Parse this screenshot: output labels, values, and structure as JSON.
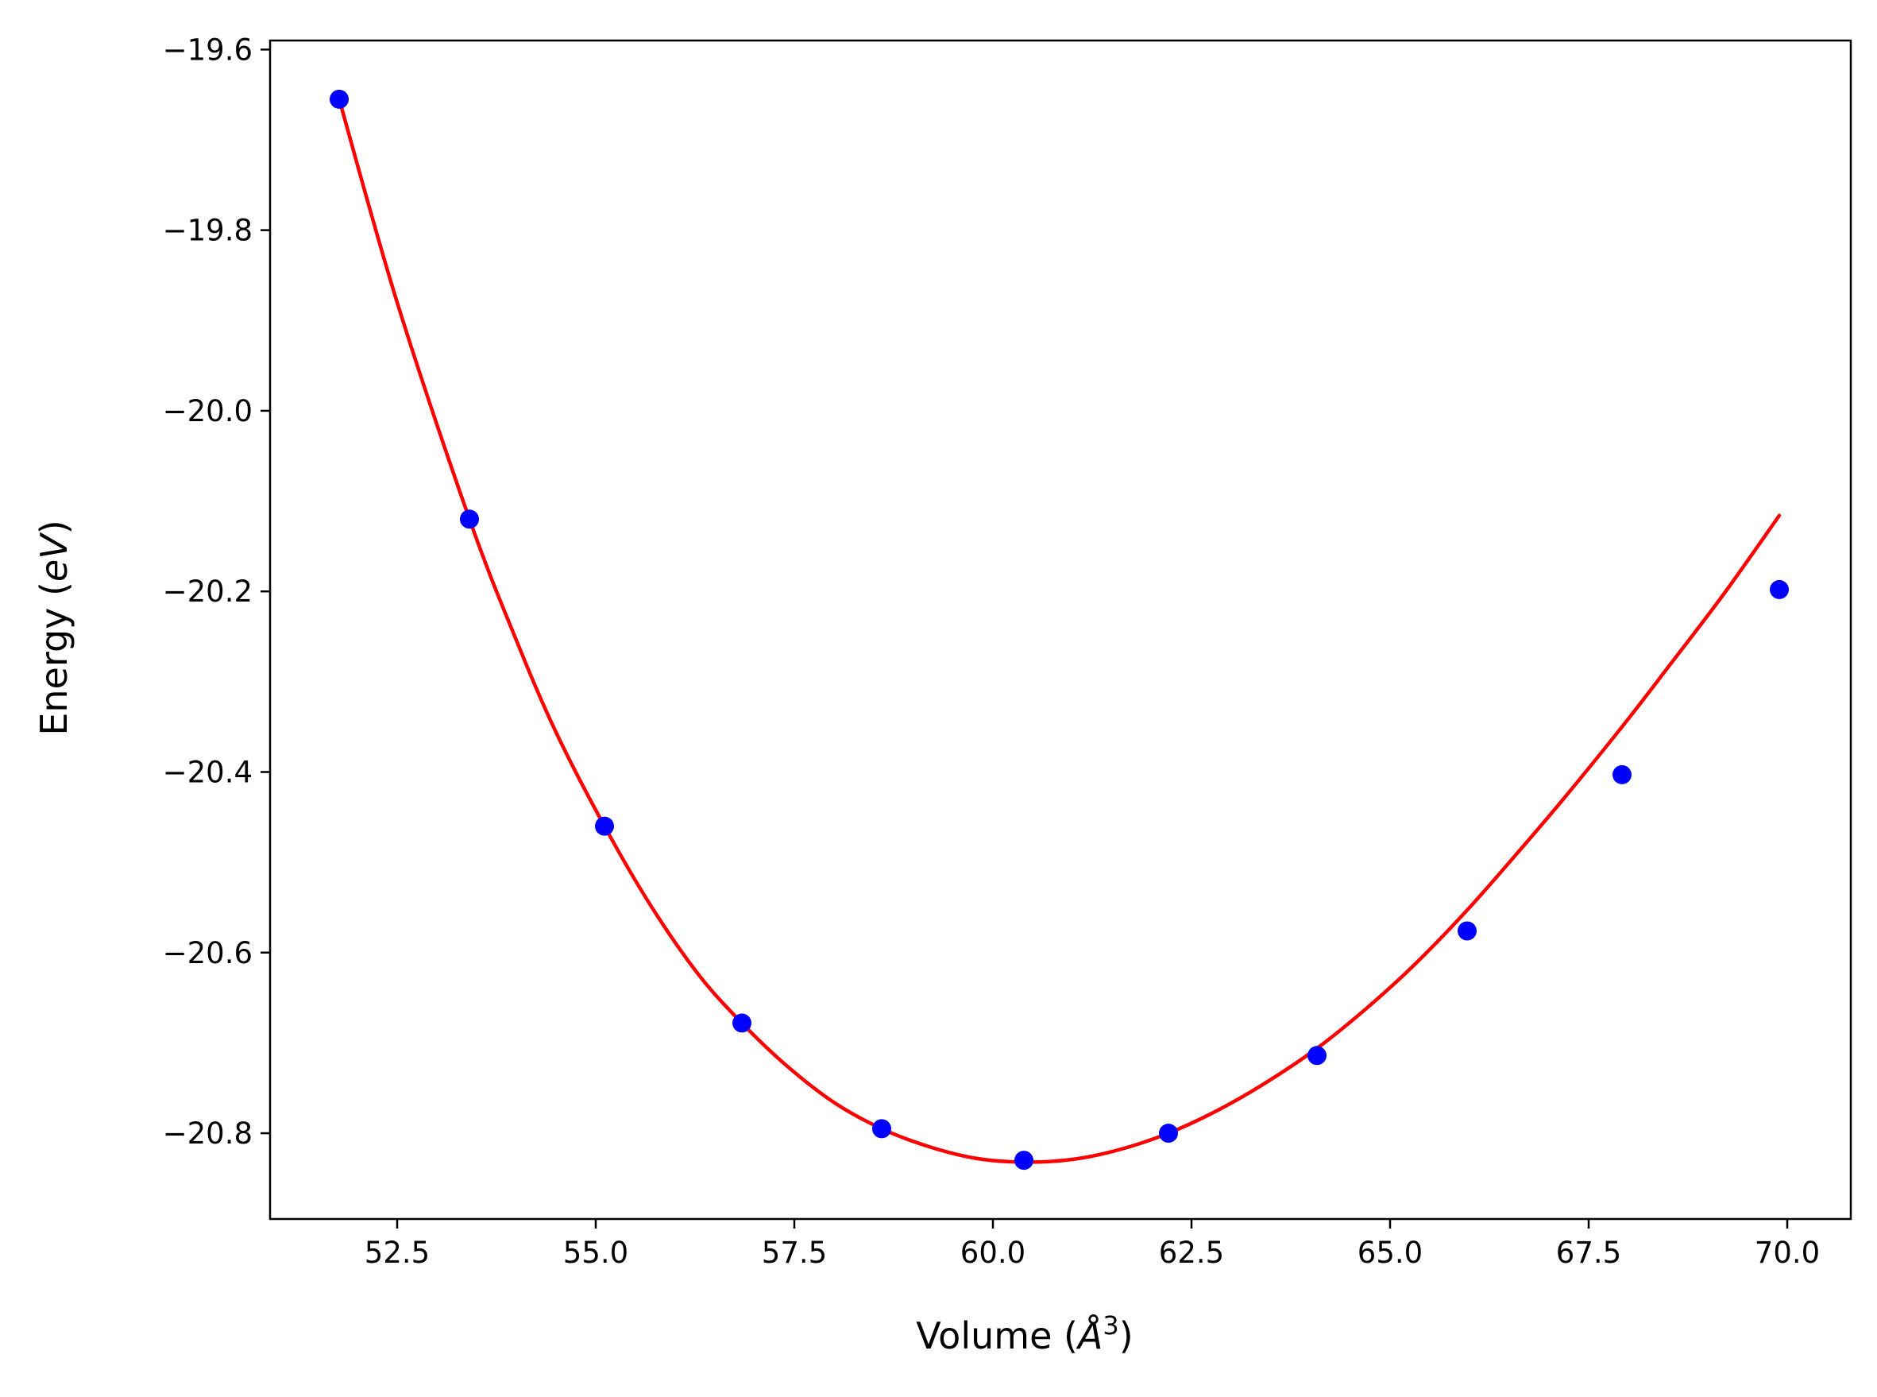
{
  "chart_data": {
    "type": "scatter",
    "xlabel": "Volume (Å³)",
    "xlabel_parts": {
      "prefix": "Volume (",
      "unit": "Å",
      "exponent": "3",
      "suffix": ")"
    },
    "ylabel": "Energy (eV)",
    "ylabel_parts": {
      "prefix": "Energy (",
      "unit": "eV",
      "suffix": ")"
    },
    "xlim": [
      50.9,
      70.8
    ],
    "ylim": [
      -20.895,
      -19.59
    ],
    "xticks": [
      52.5,
      55.0,
      57.5,
      60.0,
      62.5,
      65.0,
      67.5,
      70.0
    ],
    "xtick_labels": [
      "52.5",
      "55.0",
      "57.5",
      "60.0",
      "62.5",
      "65.0",
      "67.5",
      "70.0"
    ],
    "yticks": [
      -19.6,
      -19.8,
      -20.0,
      -20.2,
      -20.4,
      -20.6,
      -20.8
    ],
    "ytick_labels": [
      "−19.6",
      "−19.8",
      "−20.0",
      "−20.2",
      "−20.4",
      "−20.6",
      "−20.8"
    ],
    "grid": false,
    "legend": "none",
    "series": [
      {
        "kind": "points",
        "color": "#0000ff",
        "x": [
          51.77,
          53.41,
          55.11,
          56.84,
          58.6,
          60.39,
          62.21,
          64.08,
          65.97,
          67.92,
          69.9
        ],
        "y": [
          -19.655,
          -20.12,
          -20.46,
          -20.678,
          -20.795,
          -20.83,
          -20.8,
          -20.714,
          -20.576,
          -20.403,
          -20.198
        ]
      },
      {
        "kind": "fit-curve",
        "color": "#ff0000",
        "x": [
          51.77,
          52.5,
          53.41,
          54.0,
          54.5,
          55.11,
          55.7,
          56.3,
          56.84,
          57.4,
          58.0,
          58.6,
          59.2,
          59.8,
          60.39,
          61.0,
          61.6,
          62.21,
          62.8,
          63.4,
          64.08,
          64.7,
          65.3,
          65.97,
          66.6,
          67.2,
          67.92,
          68.5,
          69.2,
          69.9
        ],
        "y": [
          -19.655,
          -19.88,
          -20.12,
          -20.254,
          -20.356,
          -20.46,
          -20.549,
          -20.625,
          -20.678,
          -20.725,
          -20.766,
          -20.795,
          -20.815,
          -20.828,
          -20.832,
          -20.829,
          -20.818,
          -20.8,
          -20.776,
          -20.746,
          -20.706,
          -20.662,
          -20.614,
          -20.553,
          -20.49,
          -20.428,
          -20.35,
          -20.284,
          -20.203,
          -20.116
        ]
      }
    ]
  }
}
